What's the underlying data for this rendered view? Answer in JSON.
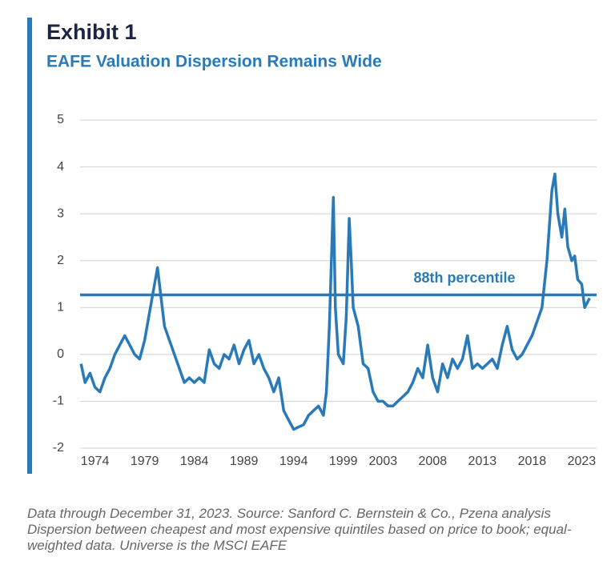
{
  "chart_data": {
    "type": "line",
    "title": "Exhibit 1",
    "subtitle": "EAFE Valuation Dispersion Remains Wide",
    "source": "Data through December 31, 2023. Source: Sanford C. Bernstein & Co., Pzena analysis Dispersion between cheapest and most expensive quintiles based on price to book; equal-weighted data. Universe is the MSCI EAFE",
    "color": "#2a7ab8",
    "grid": true,
    "x": [
      1972.6,
      1973,
      1973.5,
      1974,
      1974.5,
      1975,
      1975.5,
      1976,
      1976.5,
      1977,
      1977.5,
      1978,
      1978.5,
      1979,
      1979.5,
      1980,
      1980.3,
      1980.6,
      1981,
      1981.5,
      1982,
      1982.5,
      1983,
      1983.5,
      1984,
      1984.5,
      1985,
      1985.5,
      1986,
      1986.5,
      1987,
      1987.5,
      1988,
      1988.5,
      1989,
      1989.5,
      1990,
      1990.5,
      1991,
      1991.5,
      1992,
      1992.5,
      1993,
      1993.5,
      1994,
      1994.5,
      1995,
      1995.5,
      1996,
      1996.5,
      1997,
      1997.3,
      1997.6,
      1998,
      1998.2,
      1998.5,
      1999,
      1999.3,
      1999.6,
      1999.8,
      2000,
      2000.5,
      2001,
      2001.5,
      2002,
      2002.5,
      2003,
      2003.5,
      2004,
      2004.5,
      2005,
      2005.5,
      2006,
      2006.5,
      2007,
      2007.5,
      2008,
      2008.5,
      2009,
      2009.5,
      2010,
      2010.5,
      2011,
      2011.5,
      2012,
      2012.5,
      2013,
      2013.5,
      2014,
      2014.5,
      2015,
      2015.5,
      2016,
      2016.5,
      2017,
      2017.5,
      2018,
      2018.5,
      2019,
      2019.5,
      2020,
      2020.3,
      2020.6,
      2021,
      2021.3,
      2021.6,
      2022,
      2022.3,
      2022.6,
      2023,
      2023.3,
      2023.8
    ],
    "values": [
      -0.2,
      -0.6,
      -0.4,
      -0.7,
      -0.8,
      -0.5,
      -0.3,
      0.0,
      0.2,
      0.4,
      0.2,
      0.0,
      -0.1,
      0.3,
      0.9,
      1.5,
      1.85,
      1.3,
      0.6,
      0.3,
      0.0,
      -0.3,
      -0.6,
      -0.5,
      -0.6,
      -0.5,
      -0.6,
      0.1,
      -0.2,
      -0.3,
      0.0,
      -0.1,
      0.2,
      -0.2,
      0.1,
      0.3,
      -0.2,
      0.0,
      -0.3,
      -0.5,
      -0.8,
      -0.5,
      -1.2,
      -1.4,
      -1.6,
      -1.55,
      -1.5,
      -1.3,
      -1.2,
      -1.1,
      -1.3,
      -0.8,
      0.6,
      3.35,
      1.0,
      0.0,
      -0.2,
      0.8,
      2.9,
      2.0,
      1.0,
      0.6,
      -0.2,
      -0.3,
      -0.8,
      -1.0,
      -1.0,
      -1.1,
      -1.1,
      -1.0,
      -0.9,
      -0.8,
      -0.6,
      -0.3,
      -0.5,
      0.2,
      -0.5,
      -0.8,
      -0.2,
      -0.5,
      -0.1,
      -0.3,
      -0.1,
      0.4,
      -0.3,
      -0.2,
      -0.3,
      -0.2,
      -0.1,
      -0.3,
      0.2,
      0.6,
      0.1,
      -0.1,
      0.0,
      0.2,
      0.4,
      0.7,
      1.0,
      2.0,
      3.5,
      3.85,
      3.0,
      2.5,
      3.1,
      2.3,
      2.0,
      2.1,
      1.6,
      1.5,
      1.0,
      1.2
    ],
    "reference_line": {
      "value": 1.27,
      "label": "88th percentile"
    },
    "xlim": [
      1972.5,
      2024.5
    ],
    "xticks": [
      1974,
      1979,
      1984,
      1989,
      1994,
      1999,
      2003,
      2008,
      2013,
      2018,
      2023
    ],
    "ylim": [
      -2,
      5
    ],
    "yticks": [
      -2,
      -1,
      0,
      1,
      2,
      3,
      4,
      5
    ]
  }
}
